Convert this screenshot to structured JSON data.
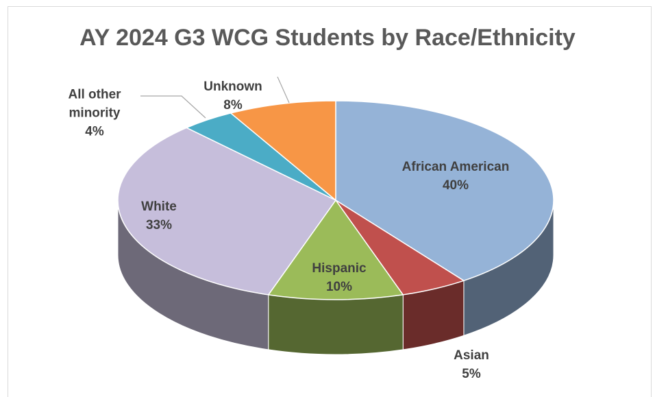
{
  "chart_data": {
    "type": "pie",
    "title": "AY 2024 G3 WCG Students by Race/Ethnicity",
    "categories": [
      "African American",
      "Asian",
      "Hispanic",
      "White",
      "All other minority",
      "Unknown"
    ],
    "values": [
      40,
      5,
      10,
      33,
      4,
      8
    ],
    "value_labels": [
      "40%",
      "5%",
      "10%",
      "33%",
      "4%",
      "8%"
    ],
    "colors": [
      "#95b3d7",
      "#c0504d",
      "#9bbb59",
      "#c6bedb",
      "#4bacc6",
      "#f79646"
    ]
  }
}
